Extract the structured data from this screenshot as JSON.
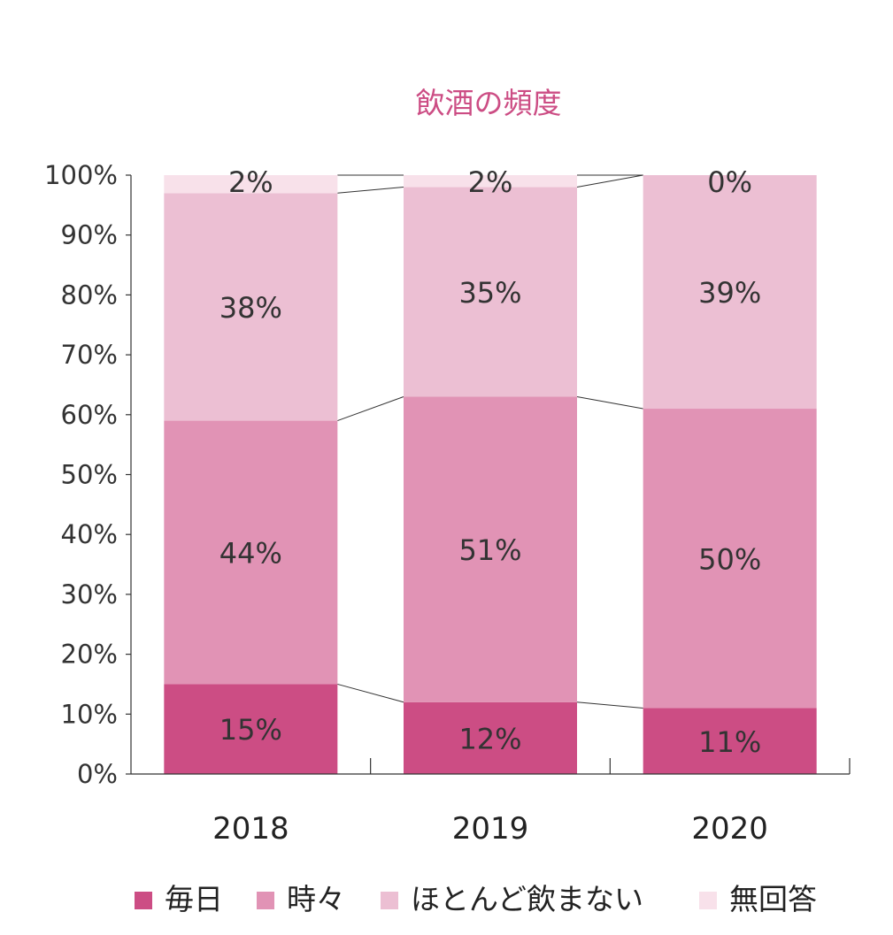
{
  "chart_data": {
    "type": "bar",
    "stacked": true,
    "title": "飲酒の頻度",
    "categories": [
      "2018",
      "2019",
      "2020"
    ],
    "series": [
      {
        "name": "毎日",
        "values": [
          15,
          12,
          11
        ],
        "labels": [
          "15%",
          "12%",
          "11%"
        ],
        "color": "#cc4d84"
      },
      {
        "name": "時々",
        "values": [
          44,
          51,
          50
        ],
        "labels": [
          "44%",
          "51%",
          "50%"
        ],
        "color": "#e193b5"
      },
      {
        "name": "ほとんど飲まない",
        "values": [
          38,
          35,
          39
        ],
        "labels": [
          "38%",
          "35%",
          "39%"
        ],
        "color": "#ecbfd3"
      },
      {
        "name": "無回答",
        "values": [
          2,
          2,
          0
        ],
        "labels": [
          "2%",
          "2%",
          "0%"
        ],
        "color": "#f8e1ea"
      }
    ],
    "yticks": [
      "0%",
      "10%",
      "20%",
      "30%",
      "40%",
      "50%",
      "60%",
      "70%",
      "80%",
      "90%",
      "100%"
    ],
    "ylim": [
      0,
      100
    ],
    "grid": false,
    "legend_position": "bottom",
    "title_color": "#cc4d84",
    "series_lines": true
  }
}
